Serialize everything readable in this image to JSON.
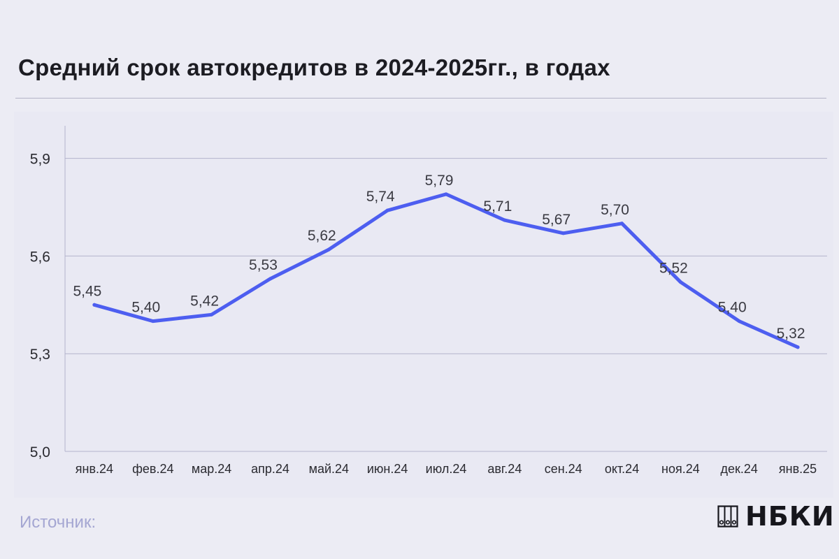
{
  "title": "Средний срок автокредитов в 2024-2025гг., в годах",
  "source_label": "Источник:",
  "logo_text": "НБКИ",
  "colors": {
    "background": "#ececf4",
    "line": "#4d5ef0",
    "grid": "#b3b3cc",
    "source": "#a4a6d2"
  },
  "chart_data": {
    "type": "line",
    "categories": [
      "янв.24",
      "фев.24",
      "мар.24",
      "апр.24",
      "май.24",
      "июн.24",
      "июл.24",
      "авг.24",
      "сен.24",
      "окт.24",
      "ноя.24",
      "дек.24",
      "янв.25"
    ],
    "series": [
      {
        "values": [
          5.45,
          5.4,
          5.42,
          5.53,
          5.62,
          5.74,
          5.79,
          5.71,
          5.67,
          5.7,
          5.52,
          5.4,
          5.32
        ],
        "value_labels": [
          "5,45",
          "5,40",
          "5,42",
          "5,53",
          "5,62",
          "5,74",
          "5,79",
          "5,71",
          "5,67",
          "5,70",
          "5,52",
          "5,40",
          "5,32"
        ]
      }
    ],
    "ylim": [
      5.0,
      6.0
    ],
    "yticks": [
      5.0,
      5.3,
      5.6,
      5.9
    ],
    "ytick_labels": [
      "5,0",
      "5,3",
      "5,6",
      "5,9"
    ],
    "xlabel": "",
    "ylabel": "",
    "grid": true,
    "legend": false
  }
}
